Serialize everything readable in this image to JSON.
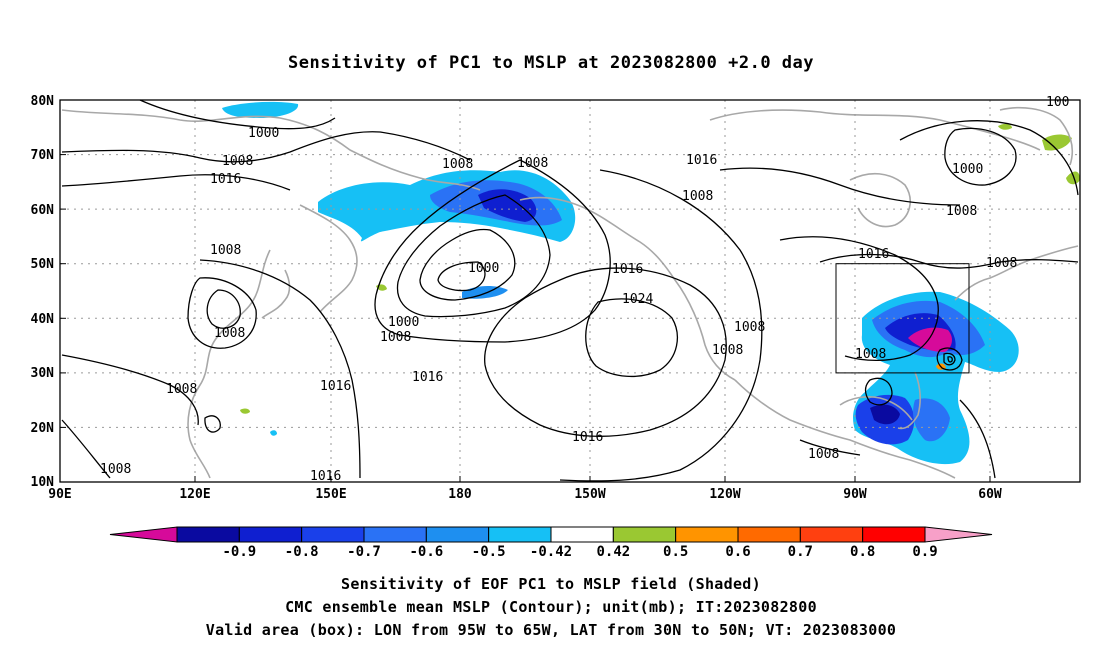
{
  "title": "Sensitivity of PC1 to MSLP at 2023082800 +2.0 day",
  "lat_labels": [
    "80N",
    "70N",
    "60N",
    "50N",
    "40N",
    "30N",
    "20N",
    "10N"
  ],
  "lon_labels": [
    "90E",
    "120E",
    "150E",
    "180",
    "150W",
    "120W",
    "90W",
    "60W"
  ],
  "contour_labels": [
    "1000",
    "1008",
    "1016",
    "1008",
    "1008",
    "1008",
    "1016",
    "1008",
    "1016",
    "1000",
    "1000",
    "1008",
    "1016",
    "1024",
    "1008",
    "1008",
    "1016",
    "1016",
    "1008",
    "1008",
    "1008",
    "1016",
    "1008",
    "1016",
    "1000",
    "1008",
    "1008",
    "1008",
    "100"
  ],
  "colorbar": {
    "labels": [
      "-0.9",
      "-0.8",
      "-0.7",
      "-0.6",
      "-0.5",
      "-0.42",
      "0.42",
      "0.5",
      "0.6",
      "0.7",
      "0.8",
      "0.9"
    ],
    "colors": [
      "#d60a9a",
      "#0a0aa0",
      "#0f1fd0",
      "#1a40ea",
      "#2a72f5",
      "#1e8ff0",
      "#16c0f5",
      "#ffffff",
      "#9ac832",
      "#ff9400",
      "#ff6a00",
      "#ff4010",
      "#ff0000",
      "#f7a0c8"
    ]
  },
  "captions": [
    "Sensitivity of EOF PC1 to MSLP field (Shaded)",
    "CMC ensemble mean MSLP (Contour); unit(mb); IT:2023082800",
    "Valid area (box): LON from 95W to 65W, LAT from 30N to 50N; VT: 2023083000"
  ]
}
